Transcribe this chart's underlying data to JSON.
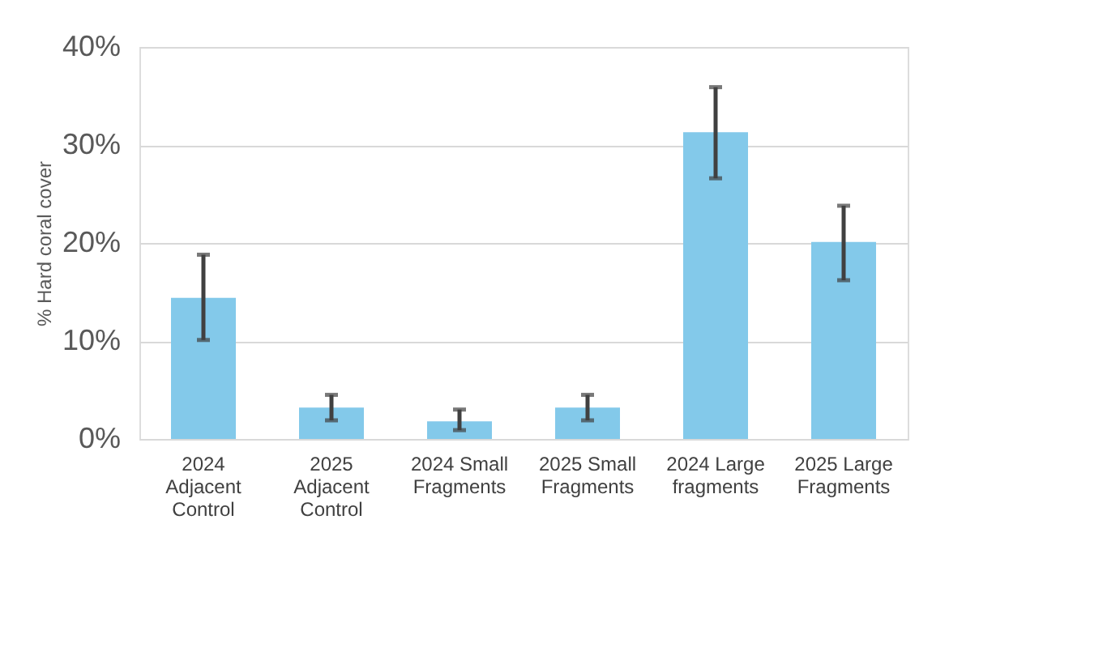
{
  "chart_data": {
    "type": "bar",
    "ylabel": "% Hard coral cover",
    "categories": [
      "2024 Adjacent Control",
      "2025 Adjacent Control",
      "2024 Small Fragments",
      "2025 Small Fragments",
      "2024 Large fragments",
      "2025 Large Fragments"
    ],
    "values": [
      14.4,
      3.2,
      1.8,
      3.2,
      31.3,
      20.1
    ],
    "errors": [
      [
        10.1,
        18.8
      ],
      [
        1.9,
        4.5
      ],
      [
        0.9,
        3.0
      ],
      [
        1.9,
        4.5
      ],
      [
        26.6,
        35.9
      ],
      [
        16.2,
        23.8
      ]
    ],
    "color": "#83c9ea",
    "ylim": [
      0,
      40
    ],
    "yticks": [
      {
        "value": 0,
        "label": "0%"
      },
      {
        "value": 10,
        "label": "10%"
      },
      {
        "value": 20,
        "label": "20%"
      },
      {
        "value": 30,
        "label": "30%"
      },
      {
        "value": 40,
        "label": "40%"
      }
    ],
    "grid": "y"
  }
}
